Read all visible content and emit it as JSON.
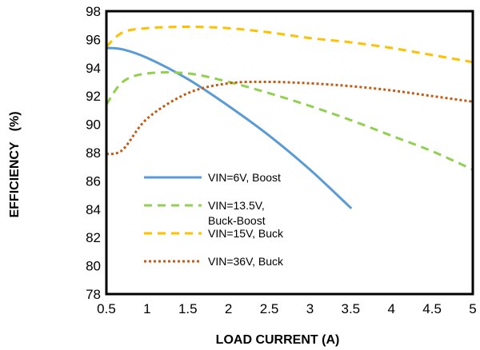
{
  "chart_data": {
    "type": "line",
    "title": "",
    "xlabel": "LOAD CURRENT  (A)",
    "ylabel": "EFFICIENCY   (%)",
    "xlim": [
      0.5,
      5
    ],
    "ylim": [
      78,
      98
    ],
    "xticks": [
      "0.5",
      "1",
      "1.5",
      "2",
      "2.5",
      "3",
      "3.5",
      "4",
      "4.5",
      "5"
    ],
    "yticks": [
      "78",
      "80",
      "82",
      "84",
      "86",
      "88",
      "90",
      "92",
      "94",
      "96",
      "98"
    ],
    "grid": false,
    "legend_position": "bottom-left",
    "series": [
      {
        "name": "VIN=6V, Boost",
        "color": "#5B9BD5",
        "line_style": "solid",
        "x": [
          0.5,
          0.7,
          1.0,
          1.5,
          2.0,
          2.5,
          3.0,
          3.5
        ],
        "y": [
          95.4,
          95.3,
          94.7,
          93.2,
          91.3,
          89.2,
          86.8,
          84.1
        ]
      },
      {
        "name": "VIN=13.5V, Buck-Boost",
        "color": "#92D050",
        "line_style": "dashed",
        "x": [
          0.5,
          0.7,
          1.0,
          1.5,
          2.0,
          2.5,
          3.0,
          3.5,
          4.0,
          4.5,
          5.0
        ],
        "y": [
          91.4,
          93.0,
          93.6,
          93.6,
          93.0,
          92.2,
          91.3,
          90.3,
          89.2,
          88.1,
          86.8
        ]
      },
      {
        "name": "VIN=15V, Buck",
        "color": "#FFC000",
        "line_style": "dashed",
        "x": [
          0.5,
          0.7,
          1.0,
          1.5,
          2.0,
          2.5,
          3.0,
          3.5,
          4.0,
          4.5,
          5.0
        ],
        "y": [
          95.5,
          96.5,
          96.8,
          96.9,
          96.8,
          96.5,
          96.1,
          95.8,
          95.4,
          94.9,
          94.4
        ]
      },
      {
        "name": "VIN=36V, Buck",
        "color": "#C55A11",
        "line_style": "dotted",
        "x": [
          0.5,
          0.7,
          1.0,
          1.5,
          2.0,
          2.5,
          3.0,
          3.5,
          4.0,
          4.5,
          5.0
        ],
        "y": [
          87.9,
          88.2,
          90.4,
          92.2,
          92.9,
          93.0,
          92.9,
          92.7,
          92.4,
          92.0,
          91.6
        ]
      }
    ],
    "legend": [
      {
        "lines": [
          "VIN=6V, Boost"
        ]
      },
      {
        "lines": [
          "VIN=13.5V,",
          "Buck-Boost"
        ]
      },
      {
        "lines": [
          "VIN=15V, Buck"
        ]
      },
      {
        "lines": [
          "VIN=36V, Buck"
        ]
      }
    ]
  }
}
